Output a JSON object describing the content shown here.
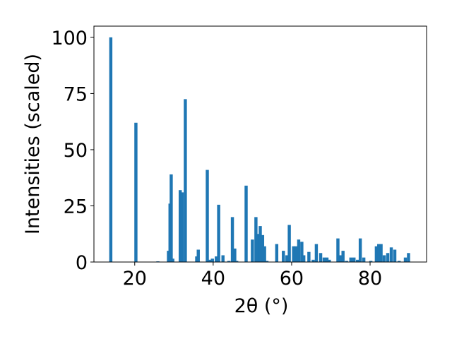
{
  "chart_data": {
    "type": "bar",
    "title": "",
    "xlabel": "2θ (°)",
    "ylabel": "Intensities (scaled)",
    "xlim": [
      9.6,
      94.4
    ],
    "ylim": [
      0,
      105
    ],
    "xticks": [
      20,
      40,
      60,
      80
    ],
    "yticks": [
      0,
      25,
      50,
      75,
      100
    ],
    "bar_width": 0.8,
    "grid": false,
    "legend": "none",
    "color": "#1f77b4",
    "x": [
      13.9,
      20.3,
      25.9,
      28.6,
      29.0,
      29.3,
      29.7,
      31.6,
      32.1,
      32.9,
      35.8,
      36.2,
      38.5,
      39.2,
      39.8,
      40.8,
      41.4,
      42.5,
      44.0,
      44.9,
      45.5,
      46.0,
      48.4,
      50.0,
      50.9,
      51.4,
      52.0,
      52.6,
      53.1,
      53.7,
      56.2,
      57.9,
      58.8,
      59.4,
      60.5,
      61.1,
      61.8,
      62.6,
      63.1,
      64.4,
      65.5,
      66.3,
      67.4,
      68.3,
      69.0,
      69.6,
      71.8,
      72.5,
      73.1,
      74.0,
      75.1,
      75.9,
      76.8,
      77.5,
      78.4,
      80.2,
      81.6,
      82.2,
      82.8,
      83.6,
      84.5,
      85.4,
      86.3,
      87.4,
      89.0,
      89.8
    ],
    "values": [
      100,
      62,
      0.3,
      5,
      26,
      39,
      1.5,
      32,
      31,
      72.5,
      2.5,
      5.5,
      41,
      1,
      1.5,
      2.5,
      25.5,
      3,
      0.5,
      20,
      6,
      0.5,
      34,
      10,
      20,
      12.5,
      16,
      12,
      7,
      0.5,
      8,
      5,
      3,
      16.5,
      7,
      7,
      10,
      9,
      3,
      4.5,
      1,
      8,
      4,
      2,
      2,
      1,
      10.5,
      3,
      5,
      0.5,
      2,
      2,
      1,
      10.5,
      2,
      0.5,
      7,
      8,
      8,
      3,
      4,
      6.5,
      5.5,
      0.5,
      2,
      4
    ]
  }
}
